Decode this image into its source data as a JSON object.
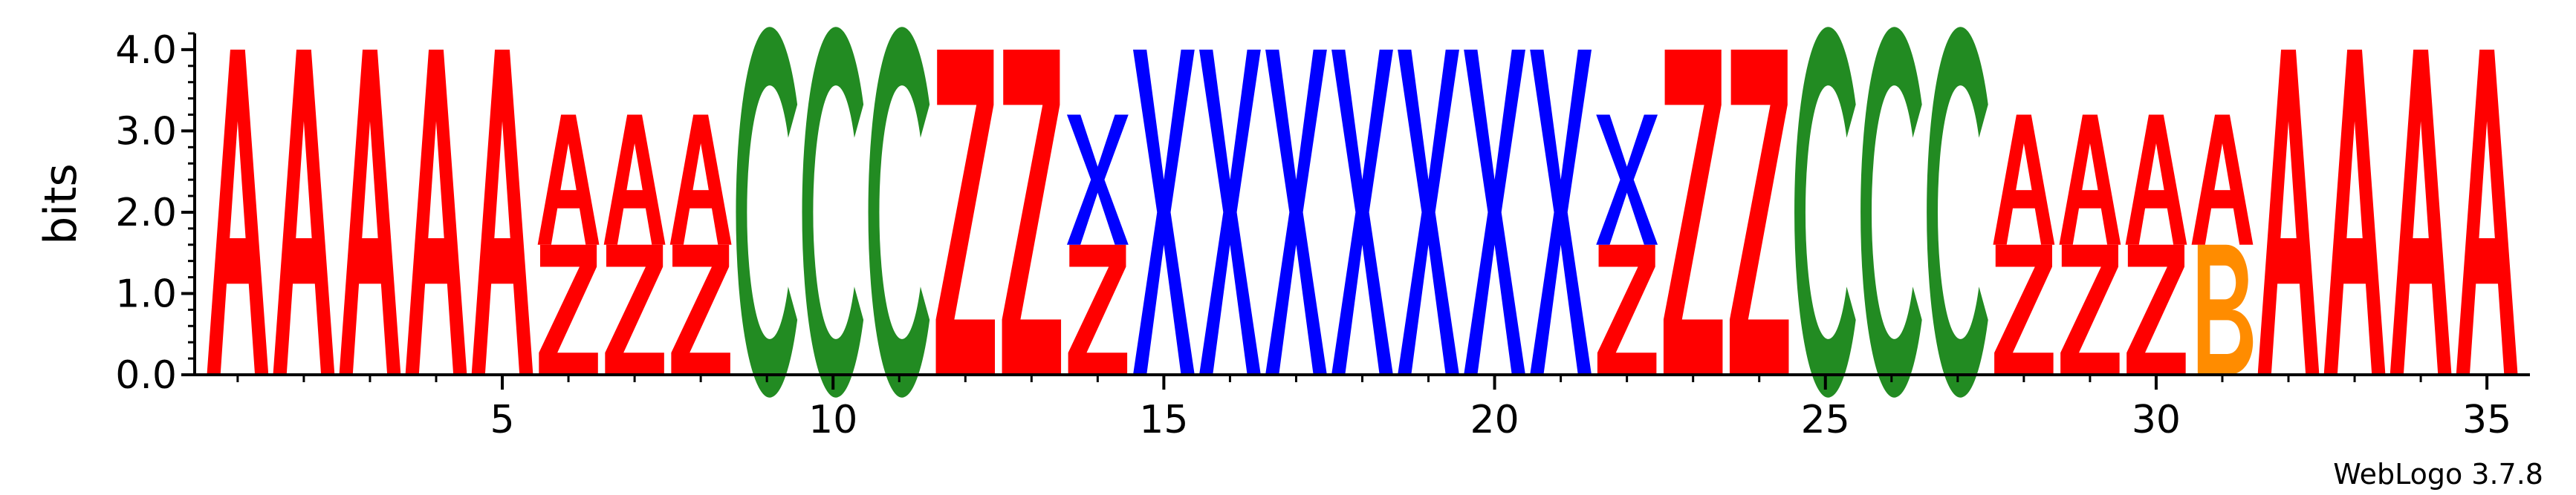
{
  "chart_data": {
    "type": "sequence-logo",
    "ylabel": "bits",
    "credit": "WebLogo 3.7.8",
    "ylim": [
      0,
      4.2
    ],
    "y_ticks": [
      {
        "value": 0,
        "label": "0.0"
      },
      {
        "value": 1,
        "label": "1.0"
      },
      {
        "value": 2,
        "label": "2.0"
      },
      {
        "value": 3,
        "label": "3.0"
      },
      {
        "value": 4,
        "label": "4.0"
      }
    ],
    "x_ticks": [
      {
        "value": 5,
        "label": "5"
      },
      {
        "value": 10,
        "label": "10"
      },
      {
        "value": 15,
        "label": "15"
      },
      {
        "value": 20,
        "label": "20"
      },
      {
        "value": 25,
        "label": "25"
      },
      {
        "value": 30,
        "label": "30"
      },
      {
        "value": 35,
        "label": "35"
      }
    ],
    "colors": {
      "A": "#ff0000",
      "Z": "#ff0000",
      "C": "#228b22",
      "X": "#0000ff",
      "B": "#ff8c00"
    },
    "positions": [
      {
        "pos": 1,
        "stack": [
          {
            "letter": "A",
            "bits": 4.0
          }
        ]
      },
      {
        "pos": 2,
        "stack": [
          {
            "letter": "A",
            "bits": 4.0
          }
        ]
      },
      {
        "pos": 3,
        "stack": [
          {
            "letter": "A",
            "bits": 4.0
          }
        ]
      },
      {
        "pos": 4,
        "stack": [
          {
            "letter": "A",
            "bits": 4.0
          }
        ]
      },
      {
        "pos": 5,
        "stack": [
          {
            "letter": "A",
            "bits": 4.0
          }
        ]
      },
      {
        "pos": 6,
        "stack": [
          {
            "letter": "Z",
            "bits": 1.6
          },
          {
            "letter": "A",
            "bits": 1.6
          }
        ]
      },
      {
        "pos": 7,
        "stack": [
          {
            "letter": "Z",
            "bits": 1.6
          },
          {
            "letter": "A",
            "bits": 1.6
          }
        ]
      },
      {
        "pos": 8,
        "stack": [
          {
            "letter": "Z",
            "bits": 1.6
          },
          {
            "letter": "A",
            "bits": 1.6
          }
        ]
      },
      {
        "pos": 9,
        "stack": [
          {
            "letter": "C",
            "bits": 4.0
          }
        ]
      },
      {
        "pos": 10,
        "stack": [
          {
            "letter": "C",
            "bits": 4.0
          }
        ]
      },
      {
        "pos": 11,
        "stack": [
          {
            "letter": "C",
            "bits": 4.0
          }
        ]
      },
      {
        "pos": 12,
        "stack": [
          {
            "letter": "Z",
            "bits": 4.0
          }
        ]
      },
      {
        "pos": 13,
        "stack": [
          {
            "letter": "Z",
            "bits": 4.0
          }
        ]
      },
      {
        "pos": 14,
        "stack": [
          {
            "letter": "Z",
            "bits": 1.6
          },
          {
            "letter": "X",
            "bits": 1.6
          }
        ]
      },
      {
        "pos": 15,
        "stack": [
          {
            "letter": "X",
            "bits": 4.0
          }
        ]
      },
      {
        "pos": 16,
        "stack": [
          {
            "letter": "X",
            "bits": 4.0
          }
        ]
      },
      {
        "pos": 17,
        "stack": [
          {
            "letter": "X",
            "bits": 4.0
          }
        ]
      },
      {
        "pos": 18,
        "stack": [
          {
            "letter": "X",
            "bits": 4.0
          }
        ]
      },
      {
        "pos": 19,
        "stack": [
          {
            "letter": "X",
            "bits": 4.0
          }
        ]
      },
      {
        "pos": 20,
        "stack": [
          {
            "letter": "X",
            "bits": 4.0
          }
        ]
      },
      {
        "pos": 21,
        "stack": [
          {
            "letter": "X",
            "bits": 4.0
          }
        ]
      },
      {
        "pos": 22,
        "stack": [
          {
            "letter": "Z",
            "bits": 1.6
          },
          {
            "letter": "X",
            "bits": 1.6
          }
        ]
      },
      {
        "pos": 23,
        "stack": [
          {
            "letter": "Z",
            "bits": 4.0
          }
        ]
      },
      {
        "pos": 24,
        "stack": [
          {
            "letter": "Z",
            "bits": 4.0
          }
        ]
      },
      {
        "pos": 25,
        "stack": [
          {
            "letter": "C",
            "bits": 4.0
          }
        ]
      },
      {
        "pos": 26,
        "stack": [
          {
            "letter": "C",
            "bits": 4.0
          }
        ]
      },
      {
        "pos": 27,
        "stack": [
          {
            "letter": "C",
            "bits": 4.0
          }
        ]
      },
      {
        "pos": 28,
        "stack": [
          {
            "letter": "Z",
            "bits": 1.6
          },
          {
            "letter": "A",
            "bits": 1.6
          }
        ]
      },
      {
        "pos": 29,
        "stack": [
          {
            "letter": "Z",
            "bits": 1.6
          },
          {
            "letter": "A",
            "bits": 1.6
          }
        ]
      },
      {
        "pos": 30,
        "stack": [
          {
            "letter": "Z",
            "bits": 1.6
          },
          {
            "letter": "A",
            "bits": 1.6
          }
        ]
      },
      {
        "pos": 31,
        "stack": [
          {
            "letter": "B",
            "bits": 1.6
          },
          {
            "letter": "A",
            "bits": 1.6
          }
        ]
      },
      {
        "pos": 32,
        "stack": [
          {
            "letter": "A",
            "bits": 4.0
          }
        ]
      },
      {
        "pos": 33,
        "stack": [
          {
            "letter": "A",
            "bits": 4.0
          }
        ]
      },
      {
        "pos": 34,
        "stack": [
          {
            "letter": "A",
            "bits": 4.0
          }
        ]
      },
      {
        "pos": 35,
        "stack": [
          {
            "letter": "A",
            "bits": 4.0
          }
        ]
      }
    ]
  }
}
